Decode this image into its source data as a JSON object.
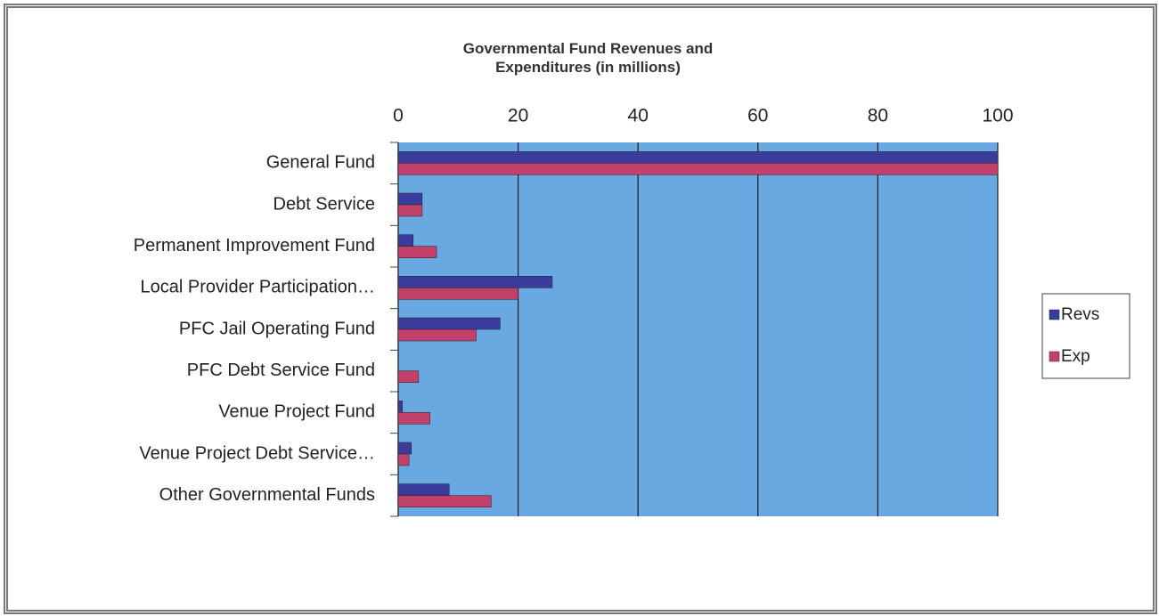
{
  "chart_data": {
    "type": "hbar",
    "title": "Governmental Fund Revenues and Expenditures (in millions)",
    "categories": [
      "General Fund",
      "Debt Service",
      "Permanent Improvement Fund",
      "Local Provider Participation…",
      "PFC Jail Operating Fund",
      "PFC Debt Service Fund",
      "Venue Project Fund",
      "Venue Project Debt Service…",
      "Other Governmental Funds"
    ],
    "series": [
      {
        "name": "Revs",
        "color": "#3a3c9c",
        "values": [
          100,
          4,
          2.5,
          25.7,
          17,
          0,
          0.7,
          2.2,
          8.5
        ]
      },
      {
        "name": "Exp",
        "color": "#c2416b",
        "values": [
          100,
          4,
          6.4,
          20,
          13,
          3.4,
          5.3,
          1.8,
          15.5
        ]
      }
    ],
    "xlim": [
      0,
      100
    ],
    "xticks": [
      0,
      20,
      40,
      60,
      80,
      100
    ],
    "grid": true,
    "legend": "right"
  }
}
